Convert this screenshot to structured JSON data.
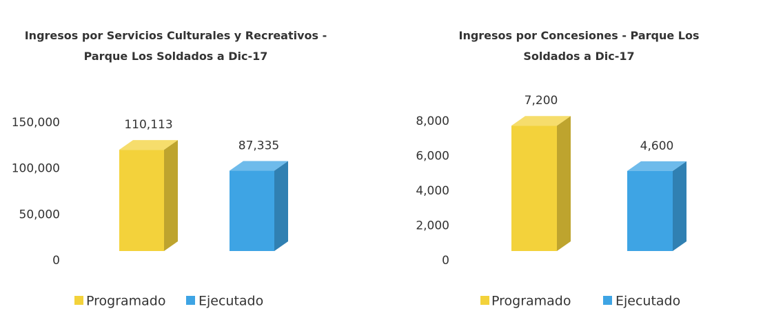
{
  "chart_data": [
    {
      "type": "bar3d",
      "title": "Ingresos por Servicios Culturales y Recreativos - Parque Los Soldados a Dic-17",
      "categories": [
        null
      ],
      "series": [
        {
          "name": "Programado",
          "color": "#f3d23b",
          "values": [
            110113
          ],
          "value_labels": [
            "110,113"
          ]
        },
        {
          "name": "Ejecutado",
          "color": "#3ea4e4",
          "values": [
            87335
          ],
          "value_labels": [
            "87,335"
          ]
        }
      ],
      "ylim": [
        0,
        150000
      ],
      "yticks": [
        0,
        {
          "value": 50000,
          "label": "50,000"
        },
        {
          "value": 100000,
          "label": "100,000"
        },
        {
          "value": 150000,
          "label": "150,000"
        }
      ],
      "legend": "bottom"
    },
    {
      "type": "bar3d",
      "title": "Ingresos por Concesiones - Parque Los Soldados a Dic-17",
      "categories": [
        null
      ],
      "series": [
        {
          "name": "Programado",
          "color": "#f3d23b",
          "values": [
            7200
          ],
          "value_labels": [
            "7,200"
          ]
        },
        {
          "name": "Ejecutado",
          "color": "#3ea4e4",
          "values": [
            4600
          ],
          "value_labels": [
            "4,600"
          ]
        }
      ],
      "ylim": [
        0,
        8000
      ],
      "yticks": [
        0,
        {
          "value": 2000,
          "label": "2,000"
        },
        {
          "value": 4000,
          "label": "4,000"
        },
        {
          "value": 6000,
          "label": "6,000"
        },
        {
          "value": 8000,
          "label": "8,000"
        }
      ],
      "legend": "bottom"
    }
  ]
}
